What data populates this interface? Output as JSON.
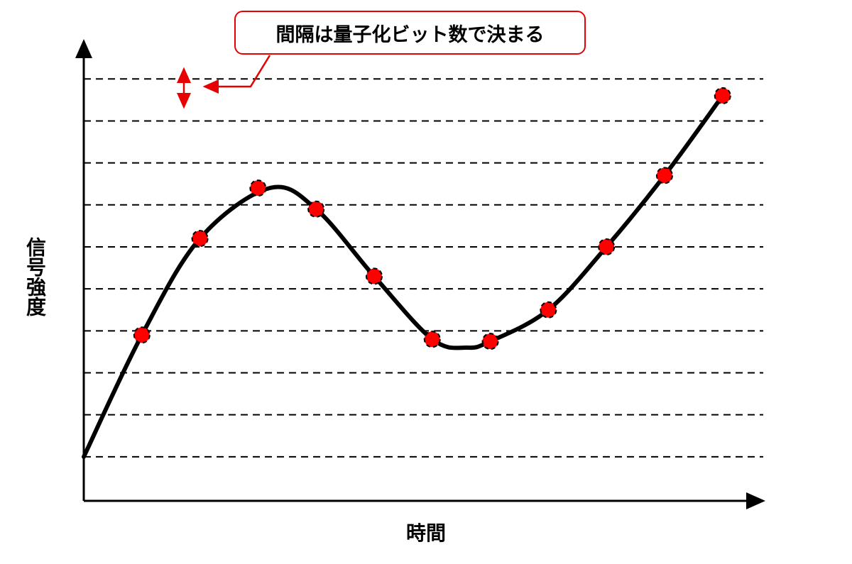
{
  "annotation": {
    "text": "間隔は量子化ビット数で決まる"
  },
  "axes": {
    "xlabel": "時間",
    "ylabel": "信号強度"
  },
  "chart_data": {
    "type": "line",
    "levels": [
      0,
      1,
      2,
      3,
      4,
      5,
      6,
      7,
      8,
      9
    ],
    "curve": {
      "x": [
        0.0,
        1.0,
        2.0,
        3.2,
        4.0,
        5.0,
        6.0,
        6.6,
        7.0,
        8.0,
        9.0,
        10.0,
        11.0
      ],
      "y": [
        0.0,
        2.9,
        5.2,
        6.4,
        5.9,
        4.3,
        2.8,
        2.6,
        2.75,
        3.5,
        5.0,
        6.7,
        8.6
      ]
    },
    "samples": {
      "x": [
        1,
        2,
        3,
        4,
        5,
        6,
        7,
        8,
        9,
        10,
        11
      ],
      "y": [
        2.9,
        5.2,
        6.4,
        5.9,
        4.3,
        2.8,
        2.75,
        3.5,
        5.0,
        6.7,
        8.6
      ]
    },
    "xlim": [
      0,
      11.7
    ],
    "ylim": [
      -1.05,
      9.9
    ],
    "grid": "dashed-horizontal",
    "colors": {
      "curve": "#000000",
      "sample": "#ff0000",
      "annotation": "#e60000"
    }
  }
}
